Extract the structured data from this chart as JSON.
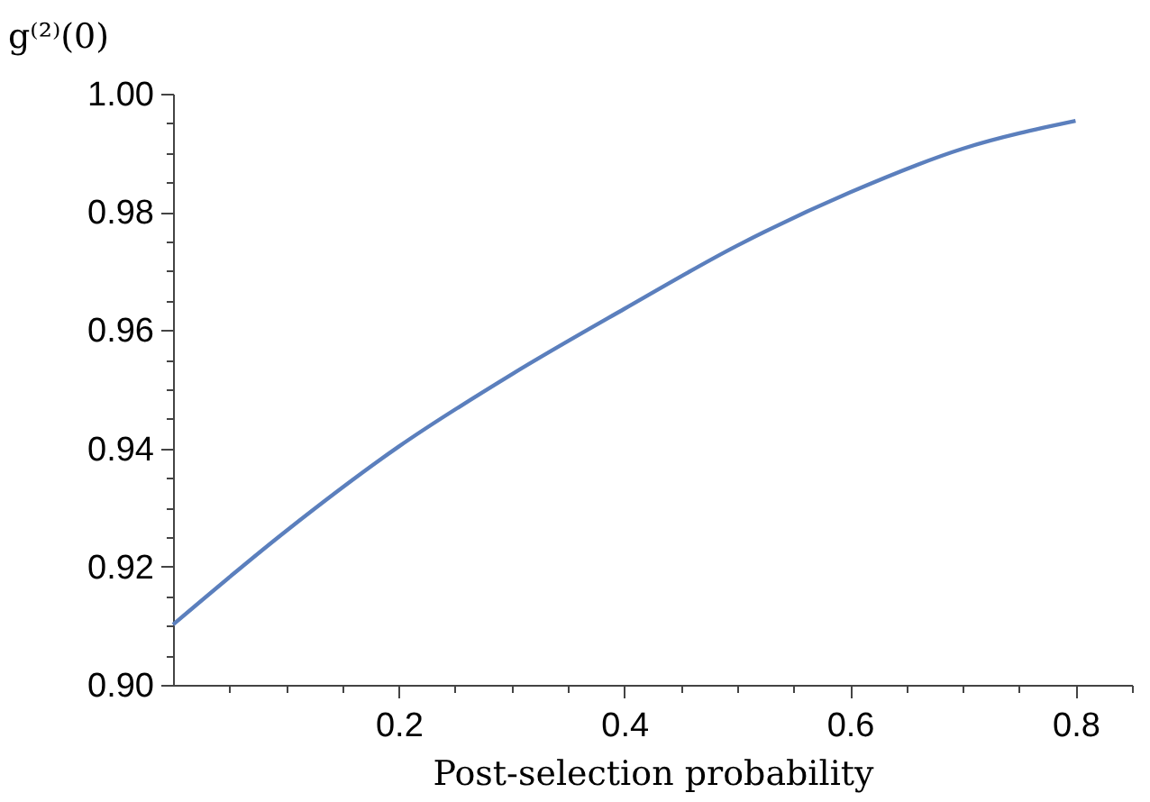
{
  "chart_data": {
    "type": "line",
    "xlabel": "Post-selection probability",
    "ylabel": "g⁽²⁾(0)",
    "x": [
      0,
      0.1,
      0.2,
      0.3,
      0.4,
      0.5,
      0.6,
      0.7,
      0.8
    ],
    "series": [
      {
        "color": "#5b7fbd",
        "values": [
          0.9102,
          0.926,
          0.9403,
          0.9525,
          0.9636,
          0.9743,
          0.9833,
          0.9907,
          0.9954
        ]
      }
    ],
    "xlim": [
      0,
      0.85
    ],
    "ylim": [
      0.9,
      1.0
    ],
    "xticks": [
      {
        "value": 0.05,
        "label": null
      },
      {
        "value": 0.1,
        "label": null
      },
      {
        "value": 0.15,
        "label": null
      },
      0.2,
      {
        "value": 0.25,
        "label": null
      },
      {
        "value": 0.3,
        "label": null
      },
      {
        "value": 0.35,
        "label": null
      },
      0.4,
      {
        "value": 0.45,
        "label": null
      },
      {
        "value": 0.5,
        "label": null
      },
      {
        "value": 0.55,
        "label": null
      },
      0.6,
      {
        "value": 0.65,
        "label": null
      },
      {
        "value": 0.7,
        "label": null
      },
      {
        "value": 0.75,
        "label": null
      },
      0.8,
      {
        "value": 0.85,
        "label": null
      }
    ],
    "yticks": [
      {
        "value": 0.9,
        "label": "0.90"
      },
      {
        "value": 0.905,
        "label": null
      },
      {
        "value": 0.91,
        "label": null
      },
      {
        "value": 0.915,
        "label": null
      },
      {
        "value": 0.92,
        "label": "0.92"
      },
      {
        "value": 0.925,
        "label": null
      },
      {
        "value": 0.93,
        "label": null
      },
      {
        "value": 0.935,
        "label": null
      },
      {
        "value": 0.94,
        "label": "0.94"
      },
      {
        "value": 0.945,
        "label": null
      },
      {
        "value": 0.95,
        "label": null
      },
      {
        "value": 0.955,
        "label": null
      },
      {
        "value": 0.96,
        "label": "0.96"
      },
      {
        "value": 0.965,
        "label": null
      },
      {
        "value": 0.97,
        "label": null
      },
      {
        "value": 0.975,
        "label": null
      },
      {
        "value": 0.98,
        "label": "0.98"
      },
      {
        "value": 0.985,
        "label": null
      },
      {
        "value": 0.99,
        "label": null
      },
      {
        "value": 0.995,
        "label": null
      },
      {
        "value": 1.0,
        "label": "1.00"
      }
    ],
    "grid": false,
    "marker": "none",
    "line_style": "solid"
  }
}
